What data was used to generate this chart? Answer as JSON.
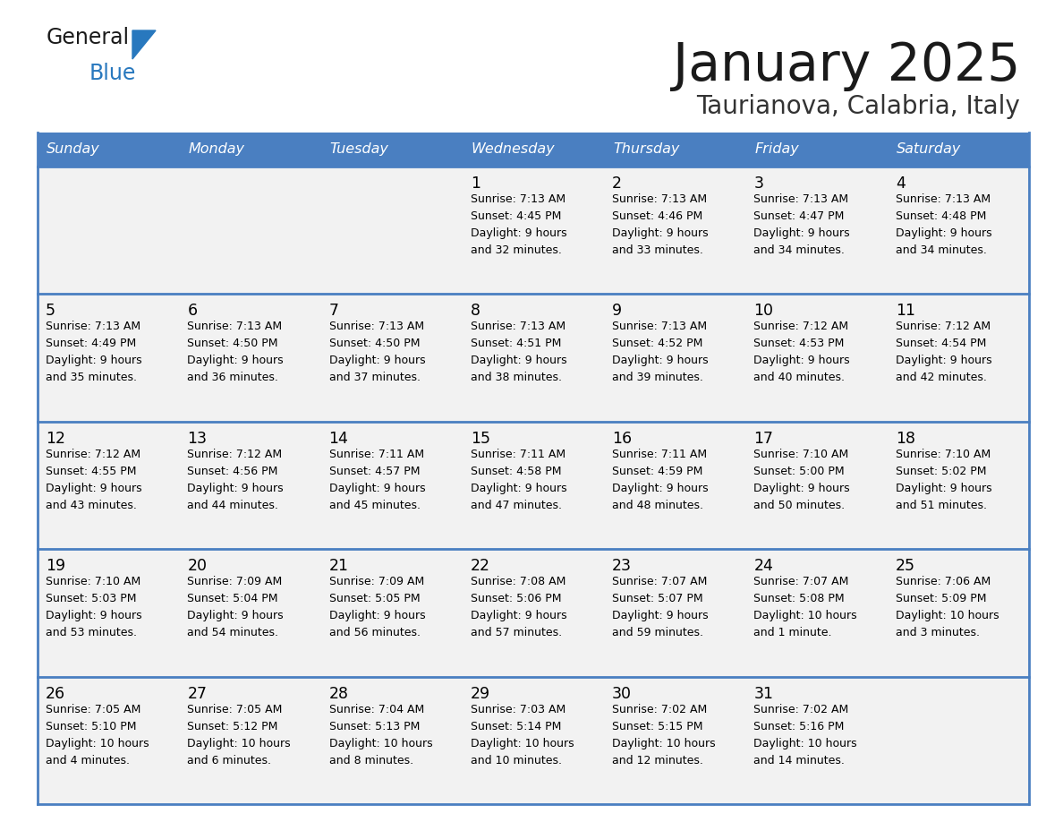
{
  "title": "January 2025",
  "subtitle": "Taurianova, Calabria, Italy",
  "days_of_week": [
    "Sunday",
    "Monday",
    "Tuesday",
    "Wednesday",
    "Thursday",
    "Friday",
    "Saturday"
  ],
  "header_bg": "#4a7fc1",
  "header_text": "#FFFFFF",
  "cell_bg": "#F2F2F2",
  "border_color": "#4a7fc1",
  "separator_color": "#4a7fc1",
  "text_color": "#000000",
  "title_color": "#1a1a1a",
  "subtitle_color": "#333333",
  "logo_general_color": "#1a1a1a",
  "logo_blue_color": "#2878be",
  "weeks": [
    [
      {
        "day": "",
        "info": ""
      },
      {
        "day": "",
        "info": ""
      },
      {
        "day": "",
        "info": ""
      },
      {
        "day": "1",
        "info": "Sunrise: 7:13 AM\nSunset: 4:45 PM\nDaylight: 9 hours\nand 32 minutes."
      },
      {
        "day": "2",
        "info": "Sunrise: 7:13 AM\nSunset: 4:46 PM\nDaylight: 9 hours\nand 33 minutes."
      },
      {
        "day": "3",
        "info": "Sunrise: 7:13 AM\nSunset: 4:47 PM\nDaylight: 9 hours\nand 34 minutes."
      },
      {
        "day": "4",
        "info": "Sunrise: 7:13 AM\nSunset: 4:48 PM\nDaylight: 9 hours\nand 34 minutes."
      }
    ],
    [
      {
        "day": "5",
        "info": "Sunrise: 7:13 AM\nSunset: 4:49 PM\nDaylight: 9 hours\nand 35 minutes."
      },
      {
        "day": "6",
        "info": "Sunrise: 7:13 AM\nSunset: 4:50 PM\nDaylight: 9 hours\nand 36 minutes."
      },
      {
        "day": "7",
        "info": "Sunrise: 7:13 AM\nSunset: 4:50 PM\nDaylight: 9 hours\nand 37 minutes."
      },
      {
        "day": "8",
        "info": "Sunrise: 7:13 AM\nSunset: 4:51 PM\nDaylight: 9 hours\nand 38 minutes."
      },
      {
        "day": "9",
        "info": "Sunrise: 7:13 AM\nSunset: 4:52 PM\nDaylight: 9 hours\nand 39 minutes."
      },
      {
        "day": "10",
        "info": "Sunrise: 7:12 AM\nSunset: 4:53 PM\nDaylight: 9 hours\nand 40 minutes."
      },
      {
        "day": "11",
        "info": "Sunrise: 7:12 AM\nSunset: 4:54 PM\nDaylight: 9 hours\nand 42 minutes."
      }
    ],
    [
      {
        "day": "12",
        "info": "Sunrise: 7:12 AM\nSunset: 4:55 PM\nDaylight: 9 hours\nand 43 minutes."
      },
      {
        "day": "13",
        "info": "Sunrise: 7:12 AM\nSunset: 4:56 PM\nDaylight: 9 hours\nand 44 minutes."
      },
      {
        "day": "14",
        "info": "Sunrise: 7:11 AM\nSunset: 4:57 PM\nDaylight: 9 hours\nand 45 minutes."
      },
      {
        "day": "15",
        "info": "Sunrise: 7:11 AM\nSunset: 4:58 PM\nDaylight: 9 hours\nand 47 minutes."
      },
      {
        "day": "16",
        "info": "Sunrise: 7:11 AM\nSunset: 4:59 PM\nDaylight: 9 hours\nand 48 minutes."
      },
      {
        "day": "17",
        "info": "Sunrise: 7:10 AM\nSunset: 5:00 PM\nDaylight: 9 hours\nand 50 minutes."
      },
      {
        "day": "18",
        "info": "Sunrise: 7:10 AM\nSunset: 5:02 PM\nDaylight: 9 hours\nand 51 minutes."
      }
    ],
    [
      {
        "day": "19",
        "info": "Sunrise: 7:10 AM\nSunset: 5:03 PM\nDaylight: 9 hours\nand 53 minutes."
      },
      {
        "day": "20",
        "info": "Sunrise: 7:09 AM\nSunset: 5:04 PM\nDaylight: 9 hours\nand 54 minutes."
      },
      {
        "day": "21",
        "info": "Sunrise: 7:09 AM\nSunset: 5:05 PM\nDaylight: 9 hours\nand 56 minutes."
      },
      {
        "day": "22",
        "info": "Sunrise: 7:08 AM\nSunset: 5:06 PM\nDaylight: 9 hours\nand 57 minutes."
      },
      {
        "day": "23",
        "info": "Sunrise: 7:07 AM\nSunset: 5:07 PM\nDaylight: 9 hours\nand 59 minutes."
      },
      {
        "day": "24",
        "info": "Sunrise: 7:07 AM\nSunset: 5:08 PM\nDaylight: 10 hours\nand 1 minute."
      },
      {
        "day": "25",
        "info": "Sunrise: 7:06 AM\nSunset: 5:09 PM\nDaylight: 10 hours\nand 3 minutes."
      }
    ],
    [
      {
        "day": "26",
        "info": "Sunrise: 7:05 AM\nSunset: 5:10 PM\nDaylight: 10 hours\nand 4 minutes."
      },
      {
        "day": "27",
        "info": "Sunrise: 7:05 AM\nSunset: 5:12 PM\nDaylight: 10 hours\nand 6 minutes."
      },
      {
        "day": "28",
        "info": "Sunrise: 7:04 AM\nSunset: 5:13 PM\nDaylight: 10 hours\nand 8 minutes."
      },
      {
        "day": "29",
        "info": "Sunrise: 7:03 AM\nSunset: 5:14 PM\nDaylight: 10 hours\nand 10 minutes."
      },
      {
        "day": "30",
        "info": "Sunrise: 7:02 AM\nSunset: 5:15 PM\nDaylight: 10 hours\nand 12 minutes."
      },
      {
        "day": "31",
        "info": "Sunrise: 7:02 AM\nSunset: 5:16 PM\nDaylight: 10 hours\nand 14 minutes."
      },
      {
        "day": "",
        "info": ""
      }
    ]
  ]
}
